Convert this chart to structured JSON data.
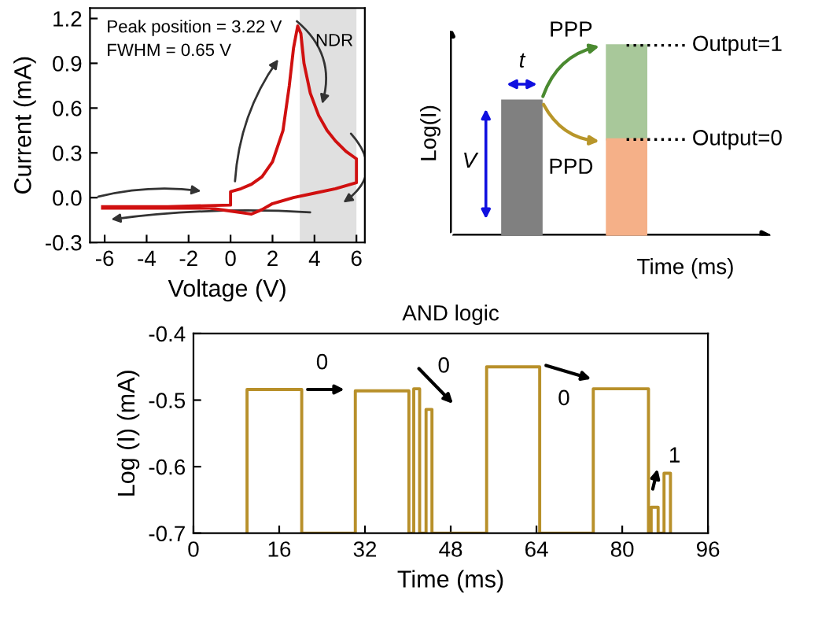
{
  "chart_data": [
    {
      "type": "line",
      "xlabel": "Voltage (V)",
      "ylabel": "Current (mA)",
      "xlim": [
        -6.7,
        6.4
      ],
      "ylim": [
        -0.3,
        1.27
      ],
      "xticks": [
        -6,
        -4,
        -2,
        0,
        2,
        4,
        6
      ],
      "yticks": [
        {
          "value": -0.3,
          "label": "-0.3"
        },
        {
          "value": 0.0,
          "label": "0.0"
        },
        {
          "value": 0.3,
          "label": "0.3"
        },
        {
          "value": 0.6,
          "label": "0.6"
        },
        {
          "value": 0.9,
          "label": "0.9"
        },
        {
          "value": 1.2,
          "label": "1.2"
        }
      ],
      "x": [
        -6.1,
        -3,
        0,
        0,
        0.5,
        1,
        1.5,
        2,
        2.5,
        2.8,
        3.0,
        3.2,
        3.35,
        3.5,
        3.8,
        4.2,
        4.6,
        5,
        5.5,
        5.9,
        6,
        6,
        5,
        4,
        3,
        2,
        1.5,
        1,
        0,
        -1,
        -3,
        -6.1
      ],
      "series": [
        {
          "color": "#d01010",
          "values": [
            -0.06,
            -0.06,
            -0.05,
            0.04,
            0.06,
            0.09,
            0.14,
            0.24,
            0.45,
            0.75,
            1.0,
            1.15,
            1.1,
            0.9,
            0.7,
            0.55,
            0.45,
            0.38,
            0.31,
            0.27,
            0.26,
            0.1,
            0.06,
            0.03,
            0.0,
            -0.04,
            -0.08,
            -0.11,
            -0.09,
            -0.07,
            -0.07,
            -0.07
          ]
        }
      ],
      "bands": [
        {
          "axis": "x",
          "from": 3.3,
          "to": 6,
          "label": "NDR",
          "color": "#e0e0e0"
        }
      ],
      "annotations": [
        "Peak position = 3.22 V",
        "FWHM = 0.65 V"
      ],
      "grid": false
    },
    {
      "type": "other",
      "xlabel": "Time (ms)",
      "ylabel": "Log(I)",
      "annotations": [
        "t",
        "V",
        "PPP",
        "PPD",
        "Output=1",
        "Output=0"
      ]
    },
    {
      "type": "line",
      "title": "AND logic",
      "xlabel": "Time (ms)",
      "ylabel": "Log (I) (mA)",
      "xlim": [
        0,
        96
      ],
      "ylim": [
        -0.7,
        -0.4
      ],
      "xticks": [
        0,
        16,
        32,
        48,
        64,
        80,
        96
      ],
      "yticks": [
        -0.7,
        -0.6,
        -0.5,
        -0.4
      ],
      "x": [
        10,
        10,
        20.2,
        20.2,
        30.2,
        30.2,
        40.2,
        40.2,
        41.1,
        41.1,
        42.2,
        42.2,
        43.4,
        43.4,
        44.5,
        44.5,
        54.7,
        54.7,
        64.6,
        64.6,
        74.6,
        74.6,
        84.9,
        84.9,
        85.4,
        85.4,
        86.7,
        86.7,
        87.8,
        87.8,
        89.0,
        89.0
      ],
      "series": [
        {
          "color": "#b8902a",
          "values": [
            -0.7,
            -0.484,
            -0.484,
            -0.7,
            -0.7,
            -0.486,
            -0.486,
            -0.7,
            -0.7,
            -0.483,
            -0.483,
            -0.7,
            -0.7,
            -0.514,
            -0.514,
            -0.7,
            -0.7,
            -0.45,
            -0.45,
            -0.7,
            -0.7,
            -0.483,
            -0.483,
            -0.7,
            -0.7,
            -0.661,
            -0.661,
            -0.7,
            -0.7,
            -0.61,
            -0.61,
            -0.7
          ]
        }
      ],
      "annotations": [
        "0",
        "0",
        "0",
        "1"
      ],
      "grid": false
    }
  ]
}
